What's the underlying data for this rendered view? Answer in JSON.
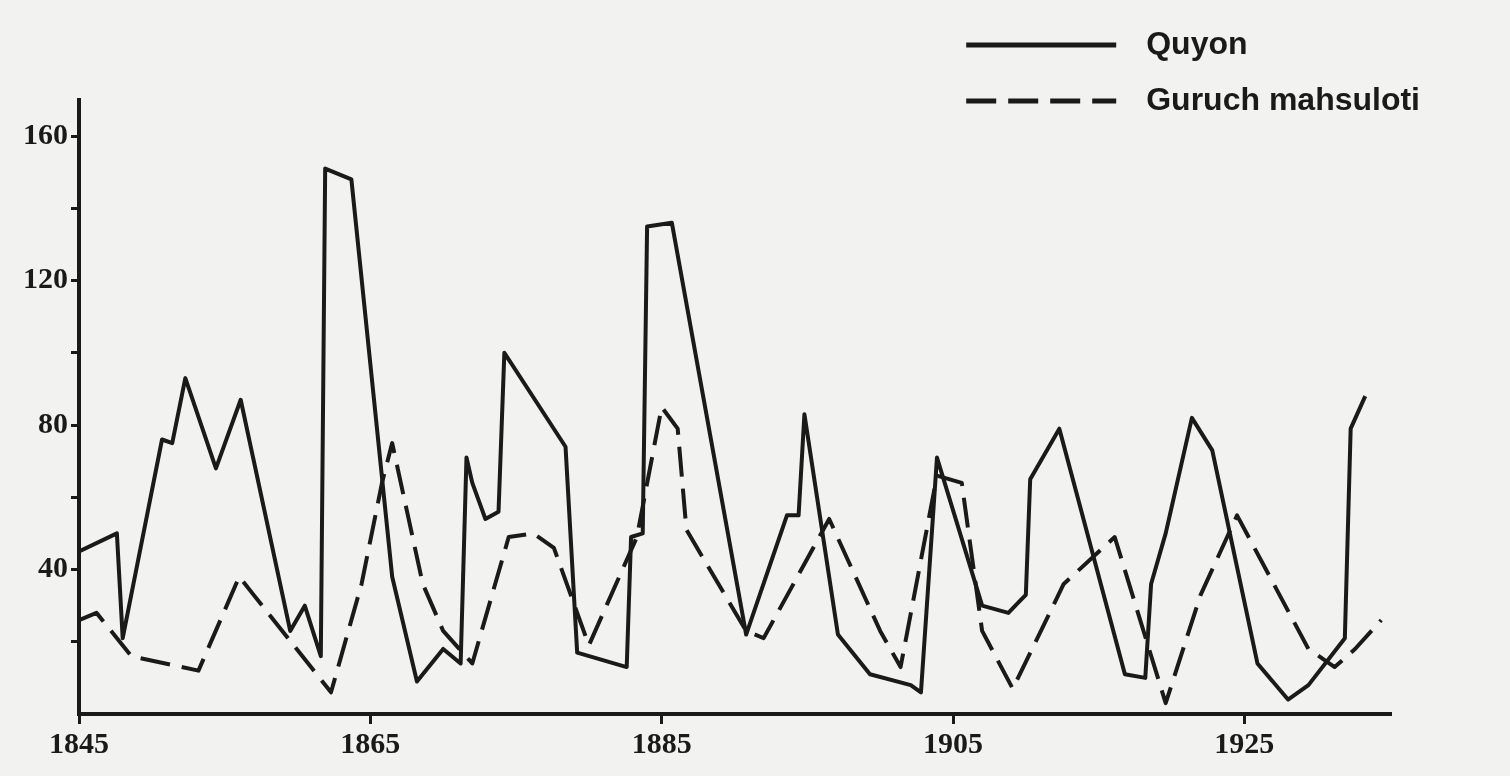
{
  "chart_data": {
    "type": "line",
    "xlim": [
      1845,
      1935
    ],
    "xticks": [
      1845,
      1865,
      1885,
      1905,
      1925
    ],
    "ylim": [
      0,
      170
    ],
    "yticks": [
      {
        "value": 20,
        "label": null
      },
      40,
      {
        "value": 60,
        "label": null
      },
      80,
      {
        "value": 100,
        "label": null
      },
      120,
      {
        "value": 140,
        "label": null
      },
      160
    ],
    "grid": false,
    "legend": "top right",
    "marker": "none",
    "series": [
      {
        "name": "Quyon",
        "color": "#1a1a1a",
        "line_style": "solid",
        "x": [
          1845,
          1847.6,
          1848,
          1850.7,
          1851.4,
          1852.3,
          1854.4,
          1856.1,
          1859.5,
          1860.5,
          1861.6,
          1861.9,
          1863.7,
          1866.5,
          1868.2,
          1870,
          1871.2,
          1871.6,
          1872,
          1872.9,
          1873.8,
          1874.2,
          1878.4,
          1879.2,
          1882.6,
          1882.9,
          1883.7,
          1884,
          1885.7,
          1890.8,
          1893.6,
          1894.4,
          1894.8,
          1897.1,
          1899.3,
          1902.1,
          1902.8,
          1903.9,
          1907,
          1908.8,
          1910,
          1910.3,
          1912.3,
          1916.8,
          1918.2,
          1918.6,
          1919.6,
          1921.4,
          1922.8,
          1925.9,
          1928,
          1929.4,
          1931.9,
          1932.3,
          1933.3
        ],
        "values": [
          45,
          50,
          21,
          76,
          75,
          93,
          68,
          87,
          23,
          30,
          16,
          151,
          148,
          38,
          9,
          18,
          14,
          71,
          64,
          54,
          56,
          100,
          74,
          17,
          13,
          49,
          50,
          135,
          136,
          22,
          55,
          55,
          83,
          22,
          11,
          8,
          6,
          71,
          30,
          28,
          33,
          65,
          79,
          11,
          10,
          36,
          50,
          82,
          73,
          14,
          4,
          8,
          21,
          79,
          88
        ]
      },
      {
        "name": "Guruch mahsuloti",
        "color": "#1a1a1a",
        "line_style": "dashed",
        "x": [
          1845,
          1846.2,
          1847.4,
          1848.6,
          1853.2,
          1856,
          1862.3,
          1864.4,
          1865.8,
          1866.5,
          1868.6,
          1870,
          1872,
          1874.5,
          1876.2,
          1877.6,
          1880,
          1883.3,
          1885,
          1886.1,
          1886.7,
          1890.8,
          1892,
          1896.5,
          1900,
          1901.4,
          1903.9,
          1905.6,
          1907,
          1909.1,
          1912.6,
          1916.1,
          1919.6,
          1922,
          1924.5,
          1929.4,
          1931.2,
          1932.6,
          1934.4
        ],
        "values": [
          26,
          28,
          22,
          16,
          12,
          38,
          6,
          36,
          64,
          75,
          36,
          23,
          14,
          49,
          50,
          46,
          19,
          49,
          85,
          79,
          51,
          23,
          21,
          54,
          23,
          13,
          66,
          64,
          23,
          7,
          36,
          49,
          3,
          33,
          55,
          18,
          13,
          18,
          26
        ]
      }
    ]
  }
}
